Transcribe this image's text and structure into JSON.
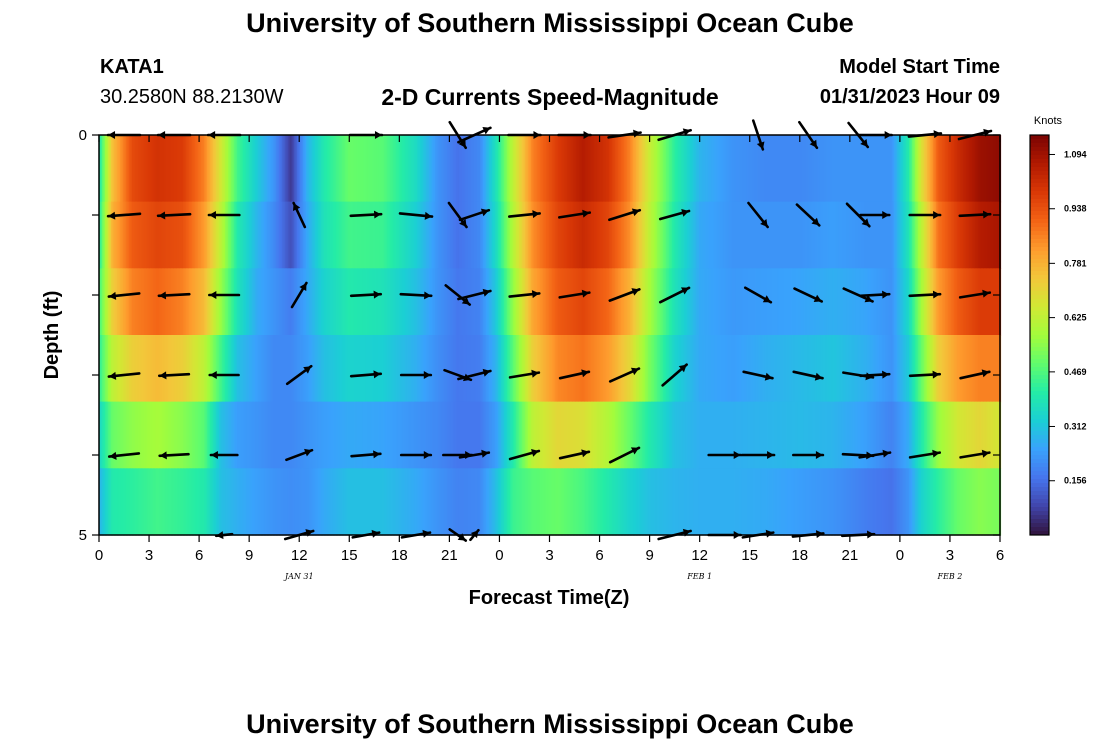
{
  "header": {
    "title": "University of Southern Mississippi Ocean Cube",
    "station": "KATA1",
    "coords": "30.2580N  88.2130W",
    "subtitle": "2-D Currents Speed-Magnitude",
    "model_label": "Model Start Time",
    "model_time": "01/31/2023 Hour 09"
  },
  "footer": {
    "title": "University of Southern Mississippi Ocean Cube"
  },
  "chart_data": {
    "type": "heatmap",
    "xlabel": "Forecast Time(Z)",
    "ylabel": "Depth (ft)",
    "x_ticks": [
      "0",
      "3",
      "6",
      "9",
      "12",
      "15",
      "18",
      "21",
      "0",
      "3",
      "6",
      "9",
      "12",
      "15",
      "18",
      "21",
      "0",
      "3",
      "6"
    ],
    "x_range_hours": [
      0,
      54
    ],
    "y_ticks": [
      "0",
      "",
      "",
      "",
      "",
      "5"
    ],
    "y_range": [
      0,
      5
    ],
    "date_labels": [
      {
        "text": "JAN 31",
        "hour": 12
      },
      {
        "text": "FEB 1",
        "hour": 36
      },
      {
        "text": "FEB 2",
        "hour": 51
      }
    ],
    "colorbar": {
      "unit": "Knots",
      "ticks": [
        "1.094",
        "0.938",
        "0.781",
        "0.625",
        "0.469",
        "0.312",
        "0.156"
      ],
      "tick_values": [
        1.094,
        0.938,
        0.781,
        0.625,
        0.469,
        0.312,
        0.156
      ],
      "min": 0.0,
      "max": 1.15,
      "colors": [
        "#30123b",
        "#4145ab",
        "#4675ed",
        "#39a2fc",
        "#1bcfd4",
        "#24eca6",
        "#61fc6c",
        "#a4fc3b",
        "#d1e834",
        "#f3c63a",
        "#fe9b2d",
        "#f36315",
        "#d93806",
        "#b11901",
        "#7a0402"
      ]
    },
    "depth_rows": [
      0,
      1,
      2,
      3,
      4,
      5
    ],
    "speed_columns": [
      {
        "h": 0.0,
        "v": [
          0.38,
          0.4,
          0.45,
          0.42,
          0.35,
          0.28
        ]
      },
      {
        "h": 0.8,
        "v": [
          0.75,
          0.78,
          0.72,
          0.62,
          0.5,
          0.4
        ]
      },
      {
        "h": 2.0,
        "v": [
          0.95,
          0.92,
          0.86,
          0.72,
          0.55,
          0.42
        ]
      },
      {
        "h": 3.5,
        "v": [
          1.0,
          0.96,
          0.9,
          0.76,
          0.58,
          0.45
        ]
      },
      {
        "h": 5.0,
        "v": [
          0.98,
          0.94,
          0.86,
          0.72,
          0.54,
          0.43
        ]
      },
      {
        "h": 6.3,
        "v": [
          0.86,
          0.82,
          0.76,
          0.62,
          0.48,
          0.4
        ]
      },
      {
        "h": 7.3,
        "v": [
          0.66,
          0.62,
          0.56,
          0.45,
          0.3,
          0.3
        ]
      },
      {
        "h": 8.3,
        "v": [
          0.45,
          0.4,
          0.38,
          0.3,
          0.24,
          0.27
        ]
      },
      {
        "h": 9.5,
        "v": [
          0.32,
          0.28,
          0.26,
          0.24,
          0.22,
          0.24
        ]
      },
      {
        "h": 10.5,
        "v": [
          0.22,
          0.2,
          0.22,
          0.2,
          0.2,
          0.22
        ]
      },
      {
        "h": 11.5,
        "v": [
          0.06,
          0.1,
          0.18,
          0.2,
          0.2,
          0.21
        ]
      },
      {
        "h": 12.5,
        "v": [
          0.28,
          0.26,
          0.26,
          0.24,
          0.22,
          0.22
        ]
      },
      {
        "h": 13.5,
        "v": [
          0.4,
          0.38,
          0.34,
          0.3,
          0.24,
          0.26
        ]
      },
      {
        "h": 15.0,
        "v": [
          0.5,
          0.45,
          0.4,
          0.34,
          0.26,
          0.3
        ]
      },
      {
        "h": 17.0,
        "v": [
          0.48,
          0.44,
          0.38,
          0.33,
          0.25,
          0.3
        ]
      },
      {
        "h": 19.0,
        "v": [
          0.36,
          0.33,
          0.3,
          0.27,
          0.22,
          0.26
        ]
      },
      {
        "h": 20.3,
        "v": [
          0.22,
          0.22,
          0.22,
          0.21,
          0.2,
          0.22
        ]
      },
      {
        "h": 21.5,
        "v": [
          0.16,
          0.16,
          0.17,
          0.17,
          0.17,
          0.19
        ]
      },
      {
        "h": 22.8,
        "v": [
          0.2,
          0.2,
          0.19,
          0.18,
          0.17,
          0.2
        ]
      },
      {
        "h": 23.8,
        "v": [
          0.38,
          0.36,
          0.32,
          0.28,
          0.24,
          0.3
        ]
      },
      {
        "h": 24.8,
        "v": [
          0.62,
          0.6,
          0.55,
          0.48,
          0.4,
          0.44
        ]
      },
      {
        "h": 26.0,
        "v": [
          0.86,
          0.84,
          0.8,
          0.72,
          0.62,
          0.48
        ]
      },
      {
        "h": 27.5,
        "v": [
          0.98,
          0.96,
          0.92,
          0.85,
          0.7,
          0.5
        ]
      },
      {
        "h": 29.0,
        "v": [
          1.06,
          1.02,
          0.96,
          0.88,
          0.68,
          0.46
        ]
      },
      {
        "h": 30.5,
        "v": [
          1.0,
          0.96,
          0.9,
          0.82,
          0.6,
          0.4
        ]
      },
      {
        "h": 31.8,
        "v": [
          0.86,
          0.84,
          0.78,
          0.7,
          0.5,
          0.34
        ]
      },
      {
        "h": 33.0,
        "v": [
          0.64,
          0.62,
          0.58,
          0.52,
          0.4,
          0.3
        ]
      },
      {
        "h": 34.5,
        "v": [
          0.42,
          0.4,
          0.38,
          0.34,
          0.3,
          0.28
        ]
      },
      {
        "h": 36.0,
        "v": [
          0.28,
          0.26,
          0.26,
          0.26,
          0.27,
          0.27
        ]
      },
      {
        "h": 38.0,
        "v": [
          0.22,
          0.22,
          0.23,
          0.24,
          0.27,
          0.27
        ]
      },
      {
        "h": 40.0,
        "v": [
          0.2,
          0.22,
          0.24,
          0.27,
          0.28,
          0.26
        ]
      },
      {
        "h": 42.0,
        "v": [
          0.2,
          0.22,
          0.25,
          0.29,
          0.29,
          0.24
        ]
      },
      {
        "h": 44.0,
        "v": [
          0.22,
          0.24,
          0.27,
          0.31,
          0.28,
          0.22
        ]
      },
      {
        "h": 46.0,
        "v": [
          0.22,
          0.22,
          0.25,
          0.27,
          0.24,
          0.18
        ]
      },
      {
        "h": 47.5,
        "v": [
          0.22,
          0.22,
          0.22,
          0.22,
          0.19,
          0.16
        ]
      },
      {
        "h": 48.5,
        "v": [
          0.4,
          0.38,
          0.35,
          0.32,
          0.26,
          0.22
        ]
      },
      {
        "h": 49.3,
        "v": [
          0.68,
          0.62,
          0.58,
          0.5,
          0.4,
          0.34
        ]
      },
      {
        "h": 50.3,
        "v": [
          0.92,
          0.88,
          0.82,
          0.72,
          0.56,
          0.42
        ]
      },
      {
        "h": 51.5,
        "v": [
          1.02,
          0.98,
          0.92,
          0.82,
          0.66,
          0.5
        ]
      },
      {
        "h": 52.8,
        "v": [
          1.1,
          1.06,
          0.98,
          0.86,
          0.7,
          0.54
        ]
      },
      {
        "h": 54.0,
        "v": [
          1.12,
          1.08,
          0.98,
          0.86,
          0.66,
          0.52
        ]
      }
    ],
    "vectors": [
      {
        "h": 1.5,
        "rows": [
          [
            -0.4,
            0
          ],
          [
            -0.4,
            0.03
          ],
          [
            -0.38,
            0.04
          ],
          [
            -0.38,
            0.04
          ],
          [
            -0.37,
            0.04
          ],
          null
        ]
      },
      {
        "h": 4.5,
        "rows": [
          [
            -0.4,
            0
          ],
          [
            -0.4,
            0.02
          ],
          [
            -0.38,
            0.02
          ],
          [
            -0.37,
            0.02
          ],
          [
            -0.36,
            0.02
          ],
          null
        ]
      },
      {
        "h": 7.5,
        "rows": [
          [
            -0.4,
            0
          ],
          [
            -0.38,
            0
          ],
          [
            -0.37,
            0
          ],
          [
            -0.36,
            0
          ],
          [
            -0.33,
            0
          ],
          [
            -0.2,
            0.02
          ]
        ]
      },
      {
        "h": 12.0,
        "rows": [
          null,
          [
            -0.14,
            -0.3
          ],
          [
            0.18,
            -0.3
          ],
          [
            0.3,
            -0.22
          ],
          [
            0.32,
            -0.12
          ],
          [
            0.35,
            -0.1
          ]
        ]
      },
      {
        "h": 16.0,
        "rows": [
          [
            0.4,
            0
          ],
          [
            0.38,
            -0.02
          ],
          [
            0.37,
            -0.02
          ],
          [
            0.37,
            -0.03
          ],
          [
            0.36,
            -0.03
          ],
          [
            0.33,
            -0.06
          ]
        ]
      },
      {
        "h": 19.0,
        "rows": [
          null,
          [
            0.4,
            0.04
          ],
          [
            0.38,
            0.02
          ],
          [
            0.37,
            0
          ],
          [
            0.37,
            0
          ],
          [
            0.35,
            -0.06
          ]
        ]
      },
      {
        "h": 21.5,
        "rows": [
          [
            0.2,
            0.32
          ],
          [
            0.22,
            0.3
          ],
          [
            0.3,
            0.24
          ],
          [
            0.33,
            0.12
          ],
          [
            0.36,
            0
          ],
          [
            0.2,
            0.14
          ]
        ]
      },
      {
        "h": 22.5,
        "rows": [
          [
            0.4,
            -0.18
          ],
          [
            0.36,
            -0.12
          ],
          [
            0.4,
            -0.1
          ],
          [
            0.4,
            -0.1
          ],
          [
            0.36,
            -0.06
          ],
          [
            0.1,
            -0.12
          ]
        ]
      },
      {
        "h": 25.5,
        "rows": [
          [
            0.4,
            0
          ],
          [
            0.38,
            -0.04
          ],
          [
            0.37,
            -0.04
          ],
          [
            0.36,
            -0.06
          ],
          [
            0.36,
            -0.1
          ],
          null
        ]
      },
      {
        "h": 28.5,
        "rows": [
          [
            0.4,
            0
          ],
          [
            0.38,
            -0.06
          ],
          [
            0.37,
            -0.06
          ],
          [
            0.36,
            -0.08
          ],
          [
            0.36,
            -0.08
          ],
          null
        ]
      },
      {
        "h": 31.5,
        "rows": [
          [
            0.4,
            -0.06
          ],
          [
            0.38,
            -0.12
          ],
          [
            0.37,
            -0.14
          ],
          [
            0.36,
            -0.16
          ],
          [
            0.36,
            -0.18
          ],
          null
        ]
      },
      {
        "h": 34.5,
        "rows": [
          [
            0.4,
            -0.12
          ],
          [
            0.36,
            -0.1
          ],
          [
            0.36,
            -0.18
          ],
          [
            0.3,
            -0.26
          ],
          null,
          [
            0.4,
            -0.1
          ]
        ]
      },
      {
        "h": 37.5,
        "rows": [
          null,
          null,
          null,
          null,
          [
            0.4,
            0
          ],
          [
            0.4,
            0
          ]
        ]
      },
      {
        "h": 39.5,
        "rows": [
          [
            0.12,
            0.36
          ],
          [
            0.24,
            0.3
          ],
          [
            0.32,
            0.18
          ],
          [
            0.36,
            0.08
          ],
          [
            0.4,
            0
          ],
          [
            0.38,
            -0.06
          ]
        ]
      },
      {
        "h": 42.5,
        "rows": [
          [
            0.22,
            0.32
          ],
          [
            0.28,
            0.26
          ],
          [
            0.34,
            0.16
          ],
          [
            0.36,
            0.08
          ],
          [
            0.37,
            0
          ],
          [
            0.38,
            -0.04
          ]
        ]
      },
      {
        "h": 45.5,
        "rows": [
          [
            0.24,
            0.3
          ],
          [
            0.28,
            0.28
          ],
          [
            0.36,
            0.16
          ],
          [
            0.37,
            0.06
          ],
          [
            0.38,
            0.02
          ],
          [
            0.4,
            -0.02
          ]
        ]
      },
      {
        "h": 46.5,
        "rows": [
          [
            0.42,
            0
          ],
          [
            0.36,
            0
          ],
          [
            0.36,
            -0.02
          ],
          [
            0.36,
            -0.02
          ],
          [
            0.38,
            -0.06
          ],
          null
        ]
      },
      {
        "h": 49.5,
        "rows": [
          [
            0.4,
            -0.04
          ],
          [
            0.38,
            0
          ],
          [
            0.38,
            -0.02
          ],
          [
            0.37,
            -0.02
          ],
          [
            0.37,
            -0.06
          ],
          null
        ]
      },
      {
        "h": 52.5,
        "rows": [
          [
            0.4,
            -0.1
          ],
          [
            0.38,
            -0.02
          ],
          [
            0.37,
            -0.06
          ],
          [
            0.36,
            -0.08
          ],
          [
            0.36,
            -0.06
          ],
          null
        ]
      }
    ]
  }
}
